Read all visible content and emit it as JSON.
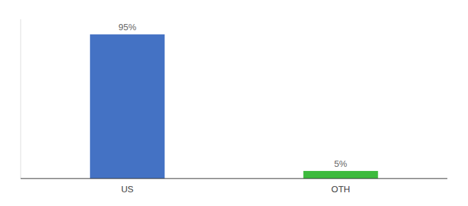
{
  "chart_data": {
    "type": "bar",
    "categories": [
      "US",
      "OTH"
    ],
    "values": [
      95,
      5
    ],
    "value_labels": [
      "95%",
      "5%"
    ],
    "colors": [
      "#4472c4",
      "#3dba3d"
    ],
    "ylim": [
      0,
      105
    ],
    "data_labels": true,
    "tick_labels": "x"
  }
}
